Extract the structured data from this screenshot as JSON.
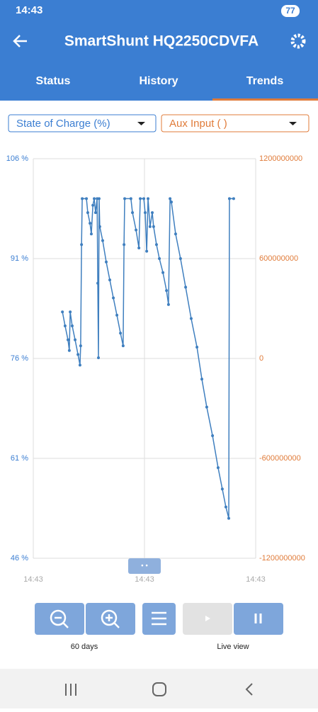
{
  "status_bar": {
    "time": "14:43",
    "battery": "77"
  },
  "header": {
    "title": "SmartShunt HQ2250CDVFA"
  },
  "tabs": [
    "Status",
    "History",
    "Trends"
  ],
  "selectors": [
    "State of Charge (%)",
    "Aux Input ( )"
  ],
  "chart_data": {
    "type": "line",
    "xlim": [
      0,
      100
    ],
    "xticks": [
      {
        "value": 0,
        "label": "14:43"
      },
      {
        "value": 50,
        "label": "14:43"
      },
      {
        "value": 100,
        "label": "14:43"
      }
    ],
    "ylim": [
      46,
      106
    ],
    "yticks": [
      {
        "value": 106,
        "label": "106 %"
      },
      {
        "value": 91,
        "label": "91 %"
      },
      {
        "value": 76,
        "label": "76 %"
      },
      {
        "value": 61,
        "label": "61 %"
      },
      {
        "value": 46,
        "label": "46 %"
      }
    ],
    "y2lim": [
      -1200000000,
      1200000000
    ],
    "y2ticks": [
      1200000000,
      600000000,
      0,
      -600000000,
      -1200000000
    ],
    "grid": true,
    "series": [
      {
        "color": "#3f7fbf",
        "x": [
          13.1,
          14.3,
          15.6,
          16.2,
          16.6,
          17.5,
          18.8,
          20.1,
          21.0,
          21.3,
          21.7,
          22.0,
          23.9,
          24.5,
          25.5,
          26.1,
          26.8,
          27.4,
          28.0,
          28.7,
          29.0,
          29.3,
          29.6,
          29.9,
          31.2,
          32.8,
          34.4,
          36.0,
          37.6,
          39.2,
          40.4,
          40.8,
          41.1,
          43.9,
          44.6,
          46.2,
          47.5,
          48.1,
          49.7,
          50.3,
          51.0,
          51.6,
          52.5,
          53.5,
          54.1,
          55.4,
          56.7,
          58.3,
          59.9,
          60.8,
          61.5,
          62.1,
          64.0,
          66.2,
          68.5,
          71.0,
          73.6,
          75.8,
          78.0,
          80.6,
          83.1,
          85.0,
          86.6,
          87.9,
          88.2,
          90.1
        ],
        "values": [
          83.0,
          80.9,
          78.8,
          77.2,
          83.0,
          80.9,
          78.8,
          76.6,
          75.0,
          77.9,
          93.1,
          100,
          100,
          97.9,
          96.3,
          94.7,
          99.0,
          100,
          97.9,
          100,
          87.3,
          76.1,
          100,
          95.8,
          93.7,
          90.5,
          87.8,
          85.1,
          82.5,
          79.8,
          77.9,
          93.1,
          100,
          100,
          97.9,
          95.3,
          92.6,
          100,
          100,
          97.9,
          92.1,
          100,
          95.8,
          97.9,
          95.8,
          93.1,
          91.0,
          88.9,
          86.2,
          84.1,
          100,
          99.5,
          94.7,
          91.0,
          86.7,
          82.0,
          77.7,
          72.9,
          68.7,
          64.4,
          59.6,
          56.4,
          53.7,
          52.0,
          100,
          100
        ]
      }
    ]
  },
  "controls": {
    "zoom_label": "60 days",
    "live_label": "Live view"
  }
}
